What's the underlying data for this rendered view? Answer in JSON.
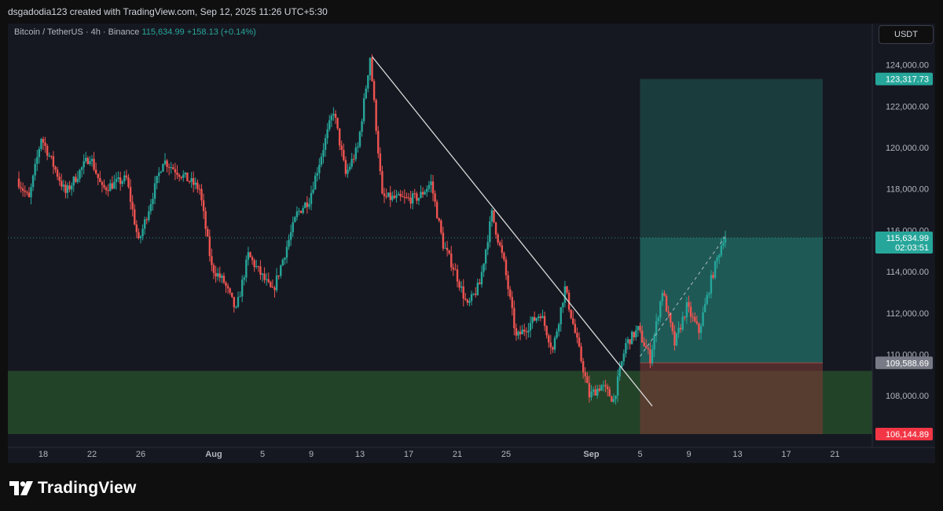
{
  "header": {
    "attribution": "dsgadodia123 created with TradingView.com, Sep 12, 2025 11:26 UTC+5:30",
    "symbol_info": "Bitcoin / TetherUS · 4h · Binance",
    "last_price": "115,634.99",
    "change": "+158.13 (+0.14%)",
    "currency": "USDT"
  },
  "footer": {
    "brand": "TradingView"
  },
  "colors": {
    "up": "#26a69a",
    "down": "#ef5350",
    "background": "#161821",
    "trendline": "#d9d9d9"
  },
  "chart_data": {
    "type": "candlestick",
    "interval": "4h",
    "x_ticks": [
      "18",
      "22",
      "26",
      "Aug",
      "5",
      "9",
      "13",
      "17",
      "21",
      "25",
      "Sep",
      "5",
      "9",
      "13",
      "17",
      "21"
    ],
    "y_ticks": [
      "124,000.00",
      "122,000.00",
      "120,000.00",
      "118,000.00",
      "116,000.00",
      "114,000.00",
      "112,000.00",
      "110,000.00",
      "108,000.00"
    ],
    "ylim": [
      105500,
      126000
    ],
    "price_labels": [
      {
        "text": "123,317.73",
        "value": 123317.73,
        "role": "take-profit",
        "color": "#26a69a"
      },
      {
        "text": "115,634.99",
        "subtext": "02:03:51",
        "value": 115634.99,
        "role": "last-price",
        "color": "#26a69a"
      },
      {
        "text": "109,588.69",
        "value": 109588.69,
        "role": "entry",
        "color": "#787b86"
      },
      {
        "text": "106,144.89",
        "value": 106144.89,
        "role": "stop-loss",
        "color": "#f23645"
      }
    ],
    "swing_points": [
      [
        "Jul 16",
        118500
      ],
      [
        "Jul 17",
        117500
      ],
      [
        "Jul 18",
        120500
      ],
      [
        "Jul 20",
        117800
      ],
      [
        "Jul 22",
        119600
      ],
      [
        "Jul 23",
        118000
      ],
      [
        "Jul 25",
        118500
      ],
      [
        "Jul 26",
        115400
      ],
      [
        "Jul 28",
        119400
      ],
      [
        "Jul 31",
        118000
      ],
      [
        "Aug 1",
        114200
      ],
      [
        "Aug 2",
        113500
      ],
      [
        "Aug 3",
        112100
      ],
      [
        "Aug 4",
        114800
      ],
      [
        "Aug 6",
        113000
      ],
      [
        "Aug 8",
        116800
      ],
      [
        "Aug 9",
        117500
      ],
      [
        "Aug 11",
        121800
      ],
      [
        "Aug 12",
        118700
      ],
      [
        "Aug 13",
        120000
      ],
      [
        "Aug 14",
        124400
      ],
      [
        "Aug 15",
        117600
      ],
      [
        "Aug 17",
        117500
      ],
      [
        "Aug 18",
        117600
      ],
      [
        "Aug 19",
        118300
      ],
      [
        "Aug 20",
        115300
      ],
      [
        "Aug 21",
        114000
      ],
      [
        "Aug 22",
        112300
      ],
      [
        "Aug 23",
        113400
      ],
      [
        "Aug 24",
        116800
      ],
      [
        "Aug 25",
        114400
      ],
      [
        "Aug 26",
        110800
      ],
      [
        "Aug 28",
        112000
      ],
      [
        "Aug 29",
        110200
      ],
      [
        "Aug 30",
        113200
      ],
      [
        "Sep 1",
        108000
      ],
      [
        "Sep 2",
        108500
      ],
      [
        "Sep 3",
        107800
      ],
      [
        "Sep 4",
        110500
      ],
      [
        "Sep 5",
        111200
      ],
      [
        "Sep 6",
        109800
      ],
      [
        "Sep 7",
        113100
      ],
      [
        "Sep 8",
        110500
      ],
      [
        "Sep 9",
        112300
      ],
      [
        "Sep 10",
        111100
      ],
      [
        "Sep 11",
        113600
      ],
      [
        "Sep 12",
        115634.99
      ]
    ],
    "trendline": {
      "from": [
        "Aug 14",
        124400
      ],
      "to": [
        "Sep 6",
        107500
      ]
    },
    "support_zone": {
      "top": 109200,
      "bottom": 106144.89
    },
    "position": {
      "start": "Sep 5",
      "end": "Sep 20",
      "entry": 109588.69,
      "target": 123317.73,
      "stop": 106144.89
    },
    "projection_line": {
      "from": [
        "Sep 5",
        109900
      ],
      "to": [
        "Sep 12",
        115700
      ]
    }
  }
}
